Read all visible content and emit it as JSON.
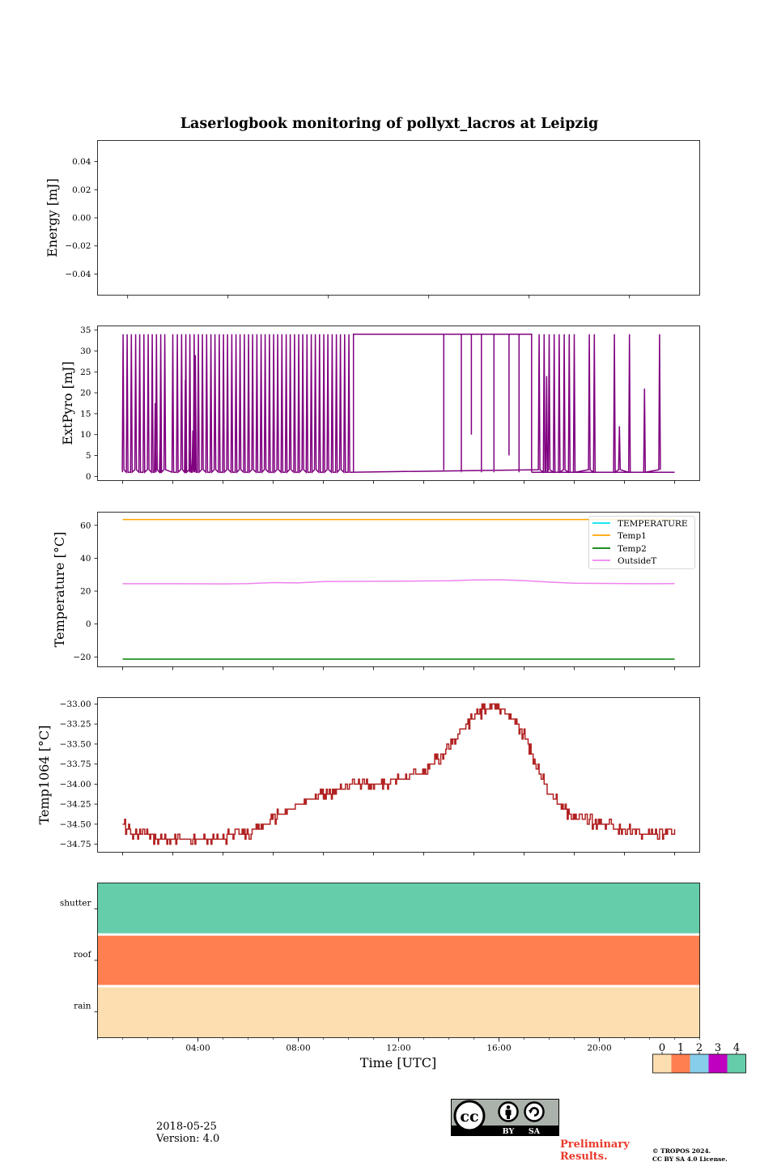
{
  "title": "Laserlogbook monitoring of pollyxt_lacros at Leipzig",
  "footer": {
    "date": "2018-05-25",
    "version": "Version: 4.0",
    "preliminary_line1": "Preliminary",
    "preliminary_line2": "Results.",
    "copyright_line1": "© TROPOS 2024.",
    "copyright_line2": "CC BY SA 4.0 License.",
    "license_badge": [
      "BY",
      "SA"
    ]
  },
  "colors": {
    "extpyro": "#800080",
    "temperature": "#00e5ee",
    "temp1": "#ffa500",
    "temp2": "#008000",
    "outsideT": "#ee82ee",
    "temp1064": "#b22222"
  },
  "chart_data": [
    {
      "type": "line",
      "id": "energy",
      "ylabel": "Energy [mJ]",
      "ylim": [
        -0.055,
        0.055
      ],
      "yticks": [
        0.04,
        0.02,
        0.0,
        -0.02,
        -0.04
      ],
      "ytick_labels": [
        "0.04",
        "0.02",
        "0.00",
        "−0.02",
        "−0.04"
      ],
      "series": []
    },
    {
      "type": "line",
      "id": "extpyro",
      "ylabel": "ExtPyro [mJ]",
      "ylim": [
        -1,
        36
      ],
      "yticks": [
        0,
        5,
        10,
        15,
        20,
        25,
        30,
        35
      ],
      "ytick_labels": [
        "0",
        "5",
        "10",
        "15",
        "20",
        "25",
        "30",
        "35"
      ],
      "x_range_hours": [
        1.0,
        23.0
      ],
      "high": 34,
      "low": 1,
      "continuous_high_hours": [
        10.2,
        17.3
      ],
      "spike_hours": [
        1.02,
        1.18,
        1.35,
        1.52,
        1.68,
        1.85,
        2.02,
        2.18,
        2.35,
        2.52,
        2.68,
        3.0,
        3.18,
        3.35,
        3.52,
        3.68,
        3.85,
        4.02,
        4.18,
        4.35,
        4.52,
        4.68,
        4.85,
        5.02,
        5.18,
        5.35,
        5.52,
        5.68,
        5.85,
        6.02,
        6.18,
        6.35,
        6.52,
        6.68,
        6.85,
        7.02,
        7.18,
        7.35,
        7.52,
        7.68,
        7.85,
        8.02,
        8.18,
        8.35,
        8.52,
        8.68,
        8.85,
        9.02,
        9.18,
        9.35,
        9.52,
        9.68,
        9.85,
        10.02,
        13.8,
        14.5,
        14.7,
        14.9,
        15.1,
        15.3,
        15.5,
        15.8,
        16.4,
        16.6,
        16.8,
        17.6,
        17.8,
        18.0,
        18.2,
        18.4,
        18.6,
        18.8,
        19.0,
        19.6,
        19.8,
        20.6,
        21.2,
        22.4
      ],
      "partial_spikes": [
        [
          2.3,
          17.5
        ],
        [
          2.5,
          11
        ],
        [
          3.5,
          23
        ],
        [
          3.7,
          6
        ],
        [
          3.8,
          11
        ],
        [
          3.9,
          29
        ],
        [
          10.7,
          27
        ],
        [
          17.9,
          24
        ],
        [
          20.8,
          12
        ],
        [
          21.8,
          21
        ]
      ],
      "series": [
        {
          "name": "ExtPyro",
          "color_key": "extpyro"
        }
      ]
    },
    {
      "type": "line",
      "id": "temperature",
      "ylabel": "Temperature [°C]",
      "ylim": [
        -26,
        68
      ],
      "yticks": [
        60,
        40,
        20,
        0,
        -20
      ],
      "ytick_labels": [
        "60",
        "40",
        "20",
        "0",
        "−20"
      ],
      "x_range_hours": [
        1.0,
        23.0
      ],
      "legend_position": "top-right",
      "legend": [
        "TEMPERATURE",
        "Temp1",
        "Temp2",
        "OutsideT"
      ],
      "series": [
        {
          "name": "TEMPERATURE",
          "color_key": "temperature",
          "x": [],
          "y": []
        },
        {
          "name": "Temp1",
          "color_key": "temp1",
          "x": [
            1,
            23
          ],
          "y": [
            63.5,
            63.5
          ]
        },
        {
          "name": "Temp2",
          "color_key": "temp2",
          "x": [
            1,
            23
          ],
          "y": [
            -21.3,
            -21.3
          ]
        },
        {
          "name": "OutsideT",
          "color_key": "outsideT",
          "x": [
            1,
            3,
            5,
            6,
            7,
            8,
            9,
            10,
            12,
            14,
            15,
            16,
            17,
            18,
            19,
            20,
            21,
            22,
            23
          ],
          "y": [
            24.5,
            24.5,
            24.4,
            24.6,
            25.2,
            25.0,
            25.8,
            25.9,
            26.0,
            26.3,
            26.8,
            26.9,
            26.4,
            25.5,
            24.8,
            24.7,
            24.6,
            24.5,
            24.6
          ]
        }
      ]
    },
    {
      "type": "line",
      "id": "temp1064",
      "ylabel": "Temp1064 [°C]",
      "ylim": [
        -34.85,
        -32.92
      ],
      "yticks": [
        -33.0,
        -33.25,
        -33.5,
        -33.75,
        -34.0,
        -34.25,
        -34.5,
        -34.75
      ],
      "ytick_labels": [
        "−33.00",
        "−33.25",
        "−33.50",
        "−33.75",
        "−34.00",
        "−34.25",
        "−34.50",
        "−34.75"
      ],
      "x_range_hours": [
        1.0,
        23.0
      ],
      "x": [
        1.0,
        1.3,
        2.0,
        3.0,
        4.0,
        5.0,
        6.0,
        6.5,
        7.0,
        7.5,
        8.0,
        8.5,
        9.0,
        9.5,
        10.0,
        11.0,
        11.5,
        12.0,
        12.5,
        13.0,
        13.5,
        14.0,
        14.5,
        15.0,
        15.5,
        16.0,
        16.5,
        17.0,
        17.5,
        18.0,
        18.5,
        19.0,
        19.5,
        20.0,
        21.0,
        22.0,
        23.0
      ],
      "y": [
        -34.5,
        -34.6,
        -34.65,
        -34.68,
        -34.68,
        -34.66,
        -34.64,
        -34.55,
        -34.42,
        -34.35,
        -34.25,
        -34.2,
        -34.12,
        -34.08,
        -34.03,
        -34.0,
        -33.98,
        -33.95,
        -33.9,
        -33.85,
        -33.7,
        -33.55,
        -33.35,
        -33.15,
        -33.05,
        -33.05,
        -33.15,
        -33.4,
        -33.8,
        -34.1,
        -34.3,
        -34.4,
        -34.45,
        -34.5,
        -34.56,
        -34.62,
        -34.62
      ],
      "series": [
        {
          "name": "Temp1064",
          "color_key": "temp1064"
        }
      ]
    },
    {
      "type": "heatmap",
      "id": "status",
      "rows": [
        "shutter",
        "roof",
        "rain"
      ],
      "row_values": [
        4,
        1,
        0
      ],
      "xlabel": "Time [UTC]",
      "xlim_hours": [
        0,
        24
      ],
      "xticks_hours": [
        4,
        8,
        12,
        16,
        20
      ],
      "xtick_labels": [
        "04:00",
        "08:00",
        "12:00",
        "16:00",
        "20:00"
      ],
      "colorbar": {
        "values": [
          0,
          1,
          2,
          3,
          4
        ],
        "labels": [
          "0",
          "1",
          "2",
          "3",
          "4"
        ],
        "colors": [
          "#fddeb0",
          "#ff7f50",
          "#87ceeb",
          "#c000c0",
          "#66cdaa"
        ]
      }
    }
  ]
}
